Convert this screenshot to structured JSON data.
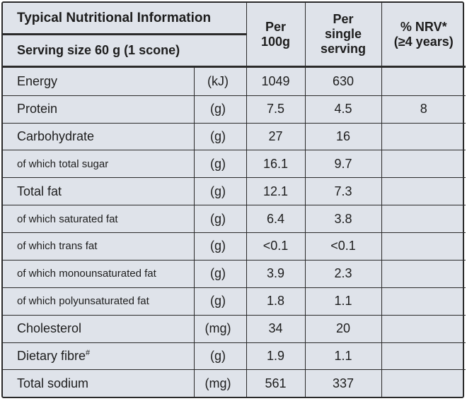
{
  "header": {
    "title": "Typical Nutritional Information",
    "serving": "Serving size 60 g (1 scone)",
    "col_per100_l1": "Per",
    "col_per100_l2": "100g",
    "col_serving_l1": "Per",
    "col_serving_l2": "single",
    "col_serving_l3": "serving",
    "col_nrv_l1": "% NRV*",
    "col_nrv_l2": "(≥4 years)"
  },
  "rows": [
    {
      "name": "Energy",
      "unit": "(kJ)",
      "per100": "1049",
      "serving": "630",
      "nrv": "",
      "sub": false
    },
    {
      "name": "Protein",
      "unit": "(g)",
      "per100": "7.5",
      "serving": "4.5",
      "nrv": "8",
      "sub": false
    },
    {
      "name": "Carbohydrate",
      "unit": "(g)",
      "per100": "27",
      "serving": "16",
      "nrv": "",
      "sub": false
    },
    {
      "name": "of which total sugar",
      "unit": "(g)",
      "per100": "16.1",
      "serving": "9.7",
      "nrv": "",
      "sub": true
    },
    {
      "name": "Total fat",
      "unit": "(g)",
      "per100": "12.1",
      "serving": "7.3",
      "nrv": "",
      "sub": false
    },
    {
      "name": "of which saturated fat",
      "unit": "(g)",
      "per100": "6.4",
      "serving": "3.8",
      "nrv": "",
      "sub": true
    },
    {
      "name": "of which trans fat",
      "unit": "(g)",
      "per100": "<0.1",
      "serving": "<0.1",
      "nrv": "",
      "sub": true
    },
    {
      "name": "of which monounsaturated fat",
      "unit": "(g)",
      "per100": "3.9",
      "serving": "2.3",
      "nrv": "",
      "sub": true
    },
    {
      "name": "of which polyunsaturated fat",
      "unit": "(g)",
      "per100": "1.8",
      "serving": "1.1",
      "nrv": "",
      "sub": true
    },
    {
      "name": "Cholesterol",
      "unit": "(mg)",
      "per100": "34",
      "serving": "20",
      "nrv": "",
      "sub": false
    },
    {
      "name": "Dietary fibre",
      "mark": "#",
      "unit": "(g)",
      "per100": "1.9",
      "serving": "1.1",
      "nrv": "",
      "sub": false
    },
    {
      "name": "Total sodium",
      "unit": "(mg)",
      "per100": "561",
      "serving": "337",
      "nrv": "",
      "sub": false
    }
  ]
}
